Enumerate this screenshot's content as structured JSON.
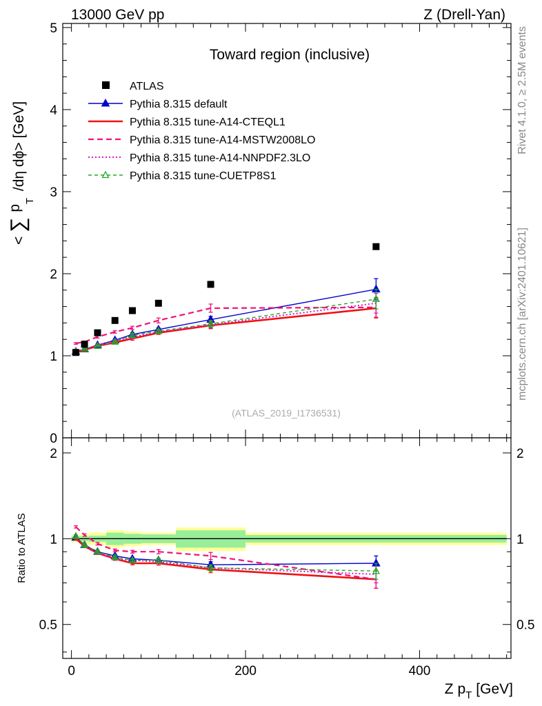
{
  "header": {
    "left": "13000 GeV pp",
    "right": "Z (Drell-Yan)"
  },
  "side_labels": {
    "rivet": "Rivet 4.1.0, ≥ 2.5M events",
    "mcplots": "mcplots.cern.ch [arXiv:2401.10621]"
  },
  "watermark": "(ATLAS_2019_I1736531)",
  "chart_data": [
    {
      "type": "line",
      "panel": "main",
      "title": "Toward region (inclusive)",
      "ylabel": "<∑ p_T /dη dϕ> [GeV]",
      "ylabel_parts": {
        "open": "<",
        "sum": "∑",
        "p": "p",
        "sub_T": "T",
        "rest": "/dη dϕ> [GeV]"
      },
      "xlabel": "",
      "xlim": [
        -10,
        505
      ],
      "ylim": [
        0,
        5.05
      ],
      "y_ticks": [
        0,
        1,
        2,
        3,
        4,
        5
      ],
      "y_tick_labels": [
        "0",
        "1",
        "2",
        "3",
        "4",
        "5"
      ],
      "atlas": {
        "name": "ATLAS",
        "color": "#000000",
        "x": [
          5,
          15,
          30,
          50,
          70,
          100,
          160,
          350
        ],
        "y": [
          1.04,
          1.14,
          1.28,
          1.43,
          1.55,
          1.64,
          1.87,
          2.33
        ]
      },
      "series": [
        {
          "name": "Pythia 8.315 default",
          "color": "#0000cc",
          "style": "solid",
          "marker": "triangle-filled",
          "x": [
            5,
            15,
            30,
            50,
            70,
            100,
            160,
            350
          ],
          "y": [
            1.05,
            1.08,
            1.13,
            1.19,
            1.26,
            1.32,
            1.44,
            1.81
          ],
          "err": [
            0.01,
            0.01,
            0.01,
            0.015,
            0.02,
            0.02,
            0.04,
            0.13
          ]
        },
        {
          "name": "Pythia 8.315 tune-A14-CTEQL1",
          "color": "#ee1111",
          "style": "solid-thick",
          "marker": "none",
          "x": [
            5,
            15,
            30,
            50,
            70,
            100,
            160,
            350
          ],
          "y": [
            1.04,
            1.07,
            1.12,
            1.16,
            1.21,
            1.28,
            1.37,
            1.58
          ],
          "err": [
            0.01,
            0.01,
            0.01,
            0.015,
            0.02,
            0.02,
            0.04,
            0.12
          ]
        },
        {
          "name": "Pythia 8.315 tune-A14-MSTW2008LO",
          "color": "#ee1177",
          "style": "dashed",
          "marker": "none",
          "x": [
            5,
            15,
            30,
            50,
            70,
            100,
            160,
            350
          ],
          "y": [
            1.15,
            1.17,
            1.23,
            1.29,
            1.34,
            1.43,
            1.58,
            1.59
          ],
          "err": [
            0.01,
            0.01,
            0.015,
            0.015,
            0.02,
            0.03,
            0.05,
            0.12
          ]
        },
        {
          "name": "Pythia 8.315 tune-A14-NNPDF2.3LO",
          "color": "#dd11cc",
          "style": "dotted",
          "marker": "none",
          "x": [
            5,
            15,
            30,
            50,
            70,
            100,
            160,
            350
          ],
          "y": [
            1.05,
            1.08,
            1.13,
            1.18,
            1.23,
            1.29,
            1.38,
            1.64
          ],
          "err": [
            0.01,
            0.01,
            0.01,
            0.015,
            0.02,
            0.02,
            0.04,
            0.12
          ]
        },
        {
          "name": "Pythia 8.315 tune-CUETP8S1",
          "color": "#22aa22",
          "style": "dashed-fine",
          "marker": "triangle-open",
          "x": [
            5,
            15,
            30,
            50,
            70,
            100,
            160,
            350
          ],
          "y": [
            1.05,
            1.08,
            1.12,
            1.17,
            1.25,
            1.3,
            1.39,
            1.69
          ],
          "err": [
            0.01,
            0.01,
            0.01,
            0.015,
            0.02,
            0.02,
            0.04,
            0.12
          ]
        }
      ]
    },
    {
      "type": "line",
      "panel": "ratio",
      "ylabel": "Ratio to ATLAS",
      "xlabel": "Z p_T [GeV]",
      "xlabel_parts": {
        "main": "Z p",
        "sub": "T",
        "unit": "[GeV]"
      },
      "xlim": [
        -10,
        505
      ],
      "ylim": [
        0.38,
        2.26
      ],
      "x_ticks": [
        0,
        200,
        400
      ],
      "x_tick_labels": [
        "0",
        "200",
        "400"
      ],
      "y_ticks": [
        0.5,
        1,
        2
      ],
      "y_tick_labels": [
        "0.5",
        "1",
        "2"
      ],
      "band_bins": [
        {
          "x": [
            0,
            10
          ],
          "stat": 0.02,
          "total": 0.03
        },
        {
          "x": [
            10,
            20
          ],
          "stat": 0.02,
          "total": 0.04
        },
        {
          "x": [
            20,
            40
          ],
          "stat": 0.025,
          "total": 0.05
        },
        {
          "x": [
            40,
            60
          ],
          "stat": 0.05,
          "total": 0.07
        },
        {
          "x": [
            60,
            80
          ],
          "stat": 0.04,
          "total": 0.06
        },
        {
          "x": [
            80,
            120
          ],
          "stat": 0.035,
          "total": 0.05
        },
        {
          "x": [
            120,
            200
          ],
          "stat": 0.07,
          "total": 0.095
        },
        {
          "x": [
            200,
            500
          ],
          "stat": 0.03,
          "total": 0.05
        }
      ],
      "series": [
        {
          "name": "Pythia 8.315 default",
          "color": "#0000cc",
          "style": "solid",
          "marker": "triangle-filled",
          "x": [
            5,
            15,
            30,
            50,
            70,
            100,
            160,
            350
          ],
          "y": [
            1.01,
            0.95,
            0.9,
            0.87,
            0.85,
            0.84,
            0.81,
            0.82
          ],
          "err": [
            0.01,
            0.01,
            0.01,
            0.01,
            0.01,
            0.012,
            0.02,
            0.05
          ]
        },
        {
          "name": "Pythia 8.315 tune-A14-CTEQL1",
          "color": "#ee1111",
          "style": "solid-thick",
          "marker": "none",
          "x": [
            5,
            15,
            30,
            50,
            70,
            100,
            160,
            350
          ],
          "y": [
            1.0,
            0.94,
            0.89,
            0.85,
            0.82,
            0.82,
            0.78,
            0.72
          ],
          "err": [
            0.01,
            0.01,
            0.01,
            0.01,
            0.01,
            0.012,
            0.02,
            0.05
          ]
        },
        {
          "name": "Pythia 8.315 tune-A14-MSTW2008LO",
          "color": "#ee1177",
          "style": "dashed",
          "marker": "none",
          "x": [
            5,
            15,
            30,
            50,
            70,
            100,
            160,
            350
          ],
          "y": [
            1.1,
            1.03,
            0.96,
            0.91,
            0.9,
            0.9,
            0.87,
            0.72
          ],
          "err": [
            0.01,
            0.01,
            0.01,
            0.01,
            0.01,
            0.015,
            0.025,
            0.05
          ]
        },
        {
          "name": "Pythia 8.315 tune-A14-NNPDF2.3LO",
          "color": "#dd11cc",
          "style": "dotted",
          "marker": "none",
          "x": [
            5,
            15,
            30,
            50,
            70,
            100,
            160,
            350
          ],
          "y": [
            1.01,
            0.95,
            0.89,
            0.85,
            0.84,
            0.83,
            0.79,
            0.75
          ],
          "err": [
            0.01,
            0.01,
            0.01,
            0.01,
            0.01,
            0.012,
            0.02,
            0.05
          ]
        },
        {
          "name": "Pythia 8.315 tune-CUETP8S1",
          "color": "#22aa22",
          "style": "dashed-fine",
          "marker": "triangle-open",
          "x": [
            5,
            15,
            30,
            50,
            70,
            100,
            160,
            350
          ],
          "y": [
            1.02,
            0.95,
            0.9,
            0.86,
            0.84,
            0.84,
            0.79,
            0.77
          ],
          "err": [
            0.01,
            0.01,
            0.01,
            0.01,
            0.01,
            0.012,
            0.02,
            0.05
          ]
        }
      ]
    }
  ]
}
